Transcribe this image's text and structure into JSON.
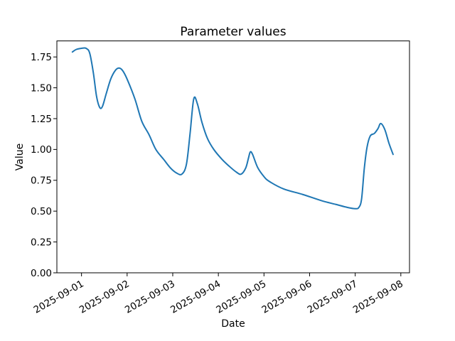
{
  "figure": {
    "background": "#ffffff"
  },
  "chart_data": {
    "type": "line",
    "title": "Parameter values",
    "xlabel": "Date",
    "ylabel": "Value",
    "grid": false,
    "legend": "none",
    "line_color": "#1f77b4",
    "axis_color": "#000000",
    "x_origin_date": "2025-09-01",
    "x_tick_labels": [
      "2025-09-01",
      "2025-09-02",
      "2025-09-03",
      "2025-09-04",
      "2025-09-05",
      "2025-09-06",
      "2025-09-07",
      "2025-09-08"
    ],
    "x_tick_days": [
      0,
      1,
      2,
      3,
      4,
      5,
      6,
      7
    ],
    "x_tick_rotation_deg": 30,
    "y_tick_labels": [
      "0.00",
      "0.25",
      "0.50",
      "0.75",
      "1.00",
      "1.25",
      "1.50",
      "1.75"
    ],
    "y_tick_values": [
      0.0,
      0.25,
      0.5,
      0.75,
      1.0,
      1.25,
      1.5,
      1.75
    ],
    "xlim_days": [
      -0.54,
      7.19
    ],
    "ylim": [
      0.0,
      1.88
    ],
    "series": [
      {
        "name": "Parameter values",
        "points_days_value": [
          [
            -0.2,
            1.79
          ],
          [
            -0.12,
            1.81
          ],
          [
            0.0,
            1.82
          ],
          [
            0.1,
            1.82
          ],
          [
            0.18,
            1.78
          ],
          [
            0.26,
            1.62
          ],
          [
            0.33,
            1.43
          ],
          [
            0.4,
            1.34
          ],
          [
            0.46,
            1.35
          ],
          [
            0.54,
            1.45
          ],
          [
            0.64,
            1.57
          ],
          [
            0.74,
            1.64
          ],
          [
            0.82,
            1.66
          ],
          [
            0.9,
            1.64
          ],
          [
            1.0,
            1.57
          ],
          [
            1.17,
            1.41
          ],
          [
            1.32,
            1.23
          ],
          [
            1.48,
            1.12
          ],
          [
            1.63,
            1.0
          ],
          [
            1.8,
            0.92
          ],
          [
            1.95,
            0.85
          ],
          [
            2.08,
            0.81
          ],
          [
            2.2,
            0.8
          ],
          [
            2.3,
            0.88
          ],
          [
            2.38,
            1.13
          ],
          [
            2.46,
            1.41
          ],
          [
            2.54,
            1.37
          ],
          [
            2.64,
            1.22
          ],
          [
            2.76,
            1.09
          ],
          [
            2.9,
            1.0
          ],
          [
            3.08,
            0.92
          ],
          [
            3.25,
            0.86
          ],
          [
            3.4,
            0.815
          ],
          [
            3.5,
            0.8
          ],
          [
            3.6,
            0.85
          ],
          [
            3.66,
            0.93
          ],
          [
            3.7,
            0.98
          ],
          [
            3.75,
            0.96
          ],
          [
            3.86,
            0.855
          ],
          [
            4.0,
            0.78
          ],
          [
            4.12,
            0.74
          ],
          [
            4.43,
            0.68
          ],
          [
            4.85,
            0.635
          ],
          [
            5.26,
            0.585
          ],
          [
            5.57,
            0.555
          ],
          [
            5.83,
            0.53
          ],
          [
            6.0,
            0.52
          ],
          [
            6.08,
            0.53
          ],
          [
            6.14,
            0.6
          ],
          [
            6.2,
            0.85
          ],
          [
            6.26,
            1.02
          ],
          [
            6.33,
            1.11
          ],
          [
            6.42,
            1.13
          ],
          [
            6.5,
            1.17
          ],
          [
            6.56,
            1.21
          ],
          [
            6.65,
            1.16
          ],
          [
            6.74,
            1.05
          ],
          [
            6.83,
            0.96
          ]
        ]
      }
    ]
  }
}
